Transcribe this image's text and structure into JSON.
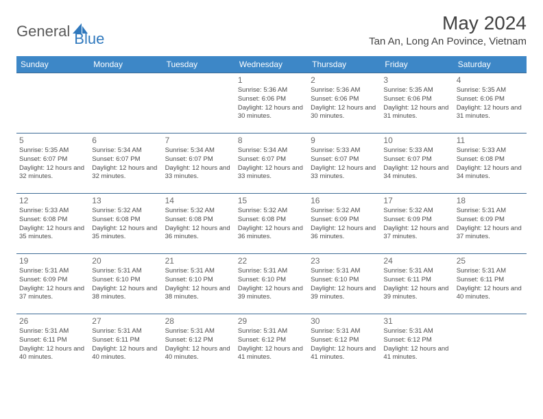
{
  "logo": {
    "part1": "General",
    "part2": "Blue"
  },
  "title": "May 2024",
  "location": "Tan An, Long An Povince, Vietnam",
  "weekdays": [
    "Sunday",
    "Monday",
    "Tuesday",
    "Wednesday",
    "Thursday",
    "Friday",
    "Saturday"
  ],
  "colors": {
    "header_bg": "#3d87c7",
    "header_text": "#ffffff",
    "row_border": "#3d6a95",
    "title_text": "#414141",
    "logo_gray": "#5a5a5a",
    "logo_blue": "#2f78bd",
    "body_text": "#4a4a4a",
    "daynum_text": "#6a6a6a"
  },
  "weeks": [
    [
      null,
      null,
      null,
      {
        "d": "1",
        "sr": "5:36 AM",
        "ss": "6:06 PM",
        "dl": "12 hours and 30 minutes."
      },
      {
        "d": "2",
        "sr": "5:36 AM",
        "ss": "6:06 PM",
        "dl": "12 hours and 30 minutes."
      },
      {
        "d": "3",
        "sr": "5:35 AM",
        "ss": "6:06 PM",
        "dl": "12 hours and 31 minutes."
      },
      {
        "d": "4",
        "sr": "5:35 AM",
        "ss": "6:06 PM",
        "dl": "12 hours and 31 minutes."
      }
    ],
    [
      {
        "d": "5",
        "sr": "5:35 AM",
        "ss": "6:07 PM",
        "dl": "12 hours and 32 minutes."
      },
      {
        "d": "6",
        "sr": "5:34 AM",
        "ss": "6:07 PM",
        "dl": "12 hours and 32 minutes."
      },
      {
        "d": "7",
        "sr": "5:34 AM",
        "ss": "6:07 PM",
        "dl": "12 hours and 33 minutes."
      },
      {
        "d": "8",
        "sr": "5:34 AM",
        "ss": "6:07 PM",
        "dl": "12 hours and 33 minutes."
      },
      {
        "d": "9",
        "sr": "5:33 AM",
        "ss": "6:07 PM",
        "dl": "12 hours and 33 minutes."
      },
      {
        "d": "10",
        "sr": "5:33 AM",
        "ss": "6:07 PM",
        "dl": "12 hours and 34 minutes."
      },
      {
        "d": "11",
        "sr": "5:33 AM",
        "ss": "6:08 PM",
        "dl": "12 hours and 34 minutes."
      }
    ],
    [
      {
        "d": "12",
        "sr": "5:33 AM",
        "ss": "6:08 PM",
        "dl": "12 hours and 35 minutes."
      },
      {
        "d": "13",
        "sr": "5:32 AM",
        "ss": "6:08 PM",
        "dl": "12 hours and 35 minutes."
      },
      {
        "d": "14",
        "sr": "5:32 AM",
        "ss": "6:08 PM",
        "dl": "12 hours and 36 minutes."
      },
      {
        "d": "15",
        "sr": "5:32 AM",
        "ss": "6:08 PM",
        "dl": "12 hours and 36 minutes."
      },
      {
        "d": "16",
        "sr": "5:32 AM",
        "ss": "6:09 PM",
        "dl": "12 hours and 36 minutes."
      },
      {
        "d": "17",
        "sr": "5:32 AM",
        "ss": "6:09 PM",
        "dl": "12 hours and 37 minutes."
      },
      {
        "d": "18",
        "sr": "5:31 AM",
        "ss": "6:09 PM",
        "dl": "12 hours and 37 minutes."
      }
    ],
    [
      {
        "d": "19",
        "sr": "5:31 AM",
        "ss": "6:09 PM",
        "dl": "12 hours and 37 minutes."
      },
      {
        "d": "20",
        "sr": "5:31 AM",
        "ss": "6:10 PM",
        "dl": "12 hours and 38 minutes."
      },
      {
        "d": "21",
        "sr": "5:31 AM",
        "ss": "6:10 PM",
        "dl": "12 hours and 38 minutes."
      },
      {
        "d": "22",
        "sr": "5:31 AM",
        "ss": "6:10 PM",
        "dl": "12 hours and 39 minutes."
      },
      {
        "d": "23",
        "sr": "5:31 AM",
        "ss": "6:10 PM",
        "dl": "12 hours and 39 minutes."
      },
      {
        "d": "24",
        "sr": "5:31 AM",
        "ss": "6:11 PM",
        "dl": "12 hours and 39 minutes."
      },
      {
        "d": "25",
        "sr": "5:31 AM",
        "ss": "6:11 PM",
        "dl": "12 hours and 40 minutes."
      }
    ],
    [
      {
        "d": "26",
        "sr": "5:31 AM",
        "ss": "6:11 PM",
        "dl": "12 hours and 40 minutes."
      },
      {
        "d": "27",
        "sr": "5:31 AM",
        "ss": "6:11 PM",
        "dl": "12 hours and 40 minutes."
      },
      {
        "d": "28",
        "sr": "5:31 AM",
        "ss": "6:12 PM",
        "dl": "12 hours and 40 minutes."
      },
      {
        "d": "29",
        "sr": "5:31 AM",
        "ss": "6:12 PM",
        "dl": "12 hours and 41 minutes."
      },
      {
        "d": "30",
        "sr": "5:31 AM",
        "ss": "6:12 PM",
        "dl": "12 hours and 41 minutes."
      },
      {
        "d": "31",
        "sr": "5:31 AM",
        "ss": "6:12 PM",
        "dl": "12 hours and 41 minutes."
      },
      null
    ]
  ],
  "labels": {
    "sunrise": "Sunrise: ",
    "sunset": "Sunset: ",
    "daylight": "Daylight: "
  }
}
